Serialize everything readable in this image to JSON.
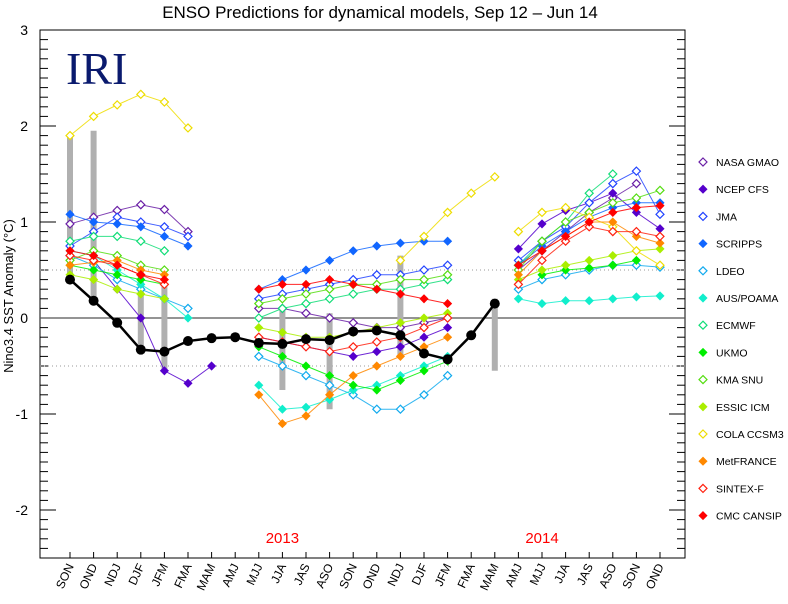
{
  "chart_data": {
    "type": "line",
    "title": "ENSO Predictions for dynamical models, Sep 12 – Jun 14",
    "ylabel": "Nino3.4 SST Anomaly (°C)",
    "xlabel": "",
    "ylim": [
      -2.5,
      3
    ],
    "yticks": [
      "3",
      "2",
      "1",
      "0",
      "-1",
      "-2"
    ],
    "ytick_values": [
      3,
      2,
      1,
      0,
      -1,
      -2
    ],
    "reference_lines": [
      0.5,
      -0.5
    ],
    "categories": [
      "SON",
      "OND",
      "NDJ",
      "DJF",
      "JFM",
      "FMA",
      "MAM",
      "AMJ",
      "MJJ",
      "JJA",
      "JAS",
      "ASO",
      "SON",
      "OND",
      "NDJ",
      "DJF",
      "JFM",
      "FMA",
      "MAM",
      "AMJ",
      "MJJ",
      "JJA",
      "JAS",
      "ASO",
      "SON",
      "OND"
    ],
    "year_labels": [
      {
        "text": "2013",
        "category_index": 9
      },
      {
        "text": "2014",
        "category_index": 20
      }
    ],
    "year_label_color": "#ff0000",
    "logo": "IRI",
    "logo_color": "#0a1a6e",
    "observed": {
      "color": "#000000",
      "values": [
        0.4,
        0.18,
        -0.05,
        -0.33,
        -0.35,
        -0.24,
        -0.21,
        -0.2,
        -0.26,
        -0.27,
        -0.22,
        -0.23,
        -0.14,
        -0.13,
        -0.18,
        -0.37,
        -0.43,
        -0.18,
        0.15
      ]
    },
    "range_bars": [
      {
        "i": 0,
        "lo": 0.4,
        "hi": 1.9
      },
      {
        "i": 1,
        "lo": 0.18,
        "hi": 1.95
      },
      {
        "i": 3,
        "lo": -0.33,
        "hi": 0.55
      },
      {
        "i": 4,
        "lo": -0.55,
        "hi": 0.35
      },
      {
        "i": 9,
        "lo": -0.75,
        "hi": 0.1
      },
      {
        "i": 11,
        "lo": -0.95,
        "hi": 0.05
      },
      {
        "i": 14,
        "lo": -0.4,
        "hi": 0.65
      },
      {
        "i": 18,
        "lo": -0.55,
        "hi": 0.2
      }
    ],
    "legend_position": "right",
    "series": [
      {
        "name": "NASA GMAO",
        "color": "#6a1fa6",
        "marker": "open",
        "forecasts": [
          {
            "start": 0,
            "values": [
              0.98,
              1.05,
              1.12,
              1.18,
              1.13,
              0.9
            ]
          },
          {
            "start": 8,
            "values": [
              0.1,
              0.1,
              0.05,
              0.0,
              -0.05,
              -0.1,
              -0.1,
              -0.05,
              0.0
            ]
          },
          {
            "start": 19,
            "values": [
              0.5,
              0.7,
              0.9,
              1.1,
              1.25,
              1.4
            ]
          }
        ]
      },
      {
        "name": "NCEP CFS",
        "color": "#5500cc",
        "marker": "filled",
        "forecasts": [
          {
            "start": 1,
            "values": [
              0.6,
              0.3,
              0.0,
              -0.55,
              -0.68,
              -0.5
            ]
          },
          {
            "start": 8,
            "values": [
              -0.2,
              -0.25,
              -0.3,
              -0.35,
              -0.4,
              -0.35,
              -0.3,
              -0.2,
              -0.1
            ]
          },
          {
            "start": 19,
            "values": [
              0.72,
              0.98,
              1.12,
              1.2,
              1.3,
              1.1,
              0.93
            ]
          }
        ]
      },
      {
        "name": "JMA",
        "color": "#2244ff",
        "marker": "open",
        "forecasts": [
          {
            "start": 0,
            "values": [
              0.75,
              0.9,
              1.05,
              1.0,
              0.95,
              0.85
            ]
          },
          {
            "start": 8,
            "values": [
              0.2,
              0.25,
              0.3,
              0.35,
              0.4,
              0.45,
              0.45,
              0.5,
              0.55
            ]
          },
          {
            "start": 19,
            "values": [
              0.6,
              0.8,
              0.95,
              1.2,
              1.4,
              1.53,
              1.08
            ]
          }
        ]
      },
      {
        "name": "SCRIPPS",
        "color": "#1166ff",
        "marker": "filled",
        "forecasts": [
          {
            "start": 0,
            "values": [
              1.08,
              1.0,
              0.98,
              0.95,
              0.85,
              0.75
            ]
          },
          {
            "start": 8,
            "values": [
              0.3,
              0.4,
              0.5,
              0.6,
              0.7,
              0.75,
              0.78,
              0.8,
              0.8
            ]
          },
          {
            "start": 19,
            "values": [
              0.55,
              0.75,
              0.9,
              1.05,
              1.15,
              1.2,
              1.2
            ]
          }
        ]
      },
      {
        "name": "LDEO",
        "color": "#11aaee",
        "marker": "open",
        "forecasts": [
          {
            "start": 0,
            "values": [
              0.65,
              0.55,
              0.4,
              0.3,
              0.2,
              0.1
            ]
          },
          {
            "start": 8,
            "values": [
              -0.4,
              -0.5,
              -0.6,
              -0.7,
              -0.8,
              -0.95,
              -0.95,
              -0.8,
              -0.6
            ]
          },
          {
            "start": 19,
            "values": [
              0.3,
              0.4,
              0.45,
              0.5,
              0.55,
              0.55,
              0.53
            ]
          }
        ]
      },
      {
        "name": "AUS/POAMA",
        "color": "#11eecc",
        "marker": "filled",
        "forecasts": [
          {
            "start": 0,
            "values": [
              0.7,
              0.65,
              0.5,
              0.35,
              0.2,
              0.0
            ]
          },
          {
            "start": 8,
            "values": [
              -0.7,
              -0.95,
              -0.93,
              -0.85,
              -0.75,
              -0.7,
              -0.6,
              -0.5,
              -0.4
            ]
          },
          {
            "start": 19,
            "values": [
              0.2,
              0.15,
              0.18,
              0.18,
              0.2,
              0.22,
              0.23
            ]
          }
        ]
      },
      {
        "name": "ECMWF",
        "color": "#11dd77",
        "marker": "open",
        "forecasts": [
          {
            "start": 0,
            "values": [
              0.8,
              0.85,
              0.85,
              0.8,
              0.7
            ]
          },
          {
            "start": 8,
            "values": [
              0.0,
              0.1,
              0.15,
              0.2,
              0.25,
              0.3,
              0.3,
              0.35,
              0.4
            ]
          },
          {
            "start": 19,
            "values": [
              0.55,
              0.8,
              1.0,
              1.3,
              1.5
            ]
          }
        ]
      },
      {
        "name": "UKMO",
        "color": "#00ee00",
        "marker": "filled",
        "forecasts": [
          {
            "start": 0,
            "values": [
              0.55,
              0.5,
              0.45,
              0.4,
              0.35
            ]
          },
          {
            "start": 8,
            "values": [
              -0.3,
              -0.4,
              -0.5,
              -0.6,
              -0.7,
              -0.75,
              -0.65,
              -0.55,
              -0.45
            ]
          },
          {
            "start": 20,
            "values": [
              0.45,
              0.5,
              0.52,
              0.55,
              0.6
            ]
          }
        ]
      },
      {
        "name": "KMA SNU",
        "color": "#55dd11",
        "marker": "open",
        "forecasts": [
          {
            "start": 0,
            "values": [
              0.6,
              0.7,
              0.65,
              0.55,
              0.5
            ]
          },
          {
            "start": 8,
            "values": [
              0.15,
              0.2,
              0.25,
              0.3,
              0.35,
              0.35,
              0.4,
              0.4,
              0.45
            ]
          },
          {
            "start": 19,
            "values": [
              0.5,
              0.8,
              1.0,
              1.1,
              1.2,
              1.25,
              1.33
            ]
          }
        ]
      },
      {
        "name": "ESSIC ICM",
        "color": "#aaee00",
        "marker": "filled",
        "forecasts": [
          {
            "start": 0,
            "values": [
              0.45,
              0.4,
              0.3,
              0.25,
              0.2
            ]
          },
          {
            "start": 8,
            "values": [
              -0.1,
              -0.15,
              -0.2,
              -0.2,
              -0.15,
              -0.1,
              -0.05,
              0.0,
              0.05
            ]
          },
          {
            "start": 19,
            "values": [
              0.4,
              0.5,
              0.55,
              0.6,
              0.65,
              0.7,
              0.72
            ]
          }
        ]
      },
      {
        "name": "COLA CCSM3",
        "color": "#eedd00",
        "marker": "open",
        "forecasts": [
          {
            "start": 0,
            "values": [
              1.9,
              2.1,
              2.22,
              2.33,
              2.25,
              1.98
            ]
          },
          {
            "start": 14,
            "values": [
              0.6,
              0.85,
              1.1,
              1.3,
              1.47
            ]
          },
          {
            "start": 19,
            "values": [
              0.9,
              1.1,
              1.15,
              1.05,
              0.95,
              0.7,
              0.55
            ]
          }
        ]
      },
      {
        "name": "MetFRANCE",
        "color": "#ff8800",
        "marker": "filled",
        "forecasts": [
          {
            "start": 0,
            "values": [
              0.55,
              0.58,
              0.6,
              0.5,
              0.45
            ]
          },
          {
            "start": 8,
            "values": [
              -0.8,
              -1.1,
              -1.02,
              -0.8,
              -0.6,
              -0.5,
              -0.4,
              -0.3,
              -0.2
            ]
          },
          {
            "start": 19,
            "values": [
              0.45,
              0.7,
              0.85,
              1.0,
              1.0,
              0.85,
              0.78
            ]
          }
        ]
      },
      {
        "name": "SINTEX-F",
        "color": "#ff2211",
        "marker": "open",
        "forecasts": [
          {
            "start": 0,
            "values": [
              0.65,
              0.6,
              0.55,
              0.45,
              0.35
            ]
          },
          {
            "start": 8,
            "values": [
              -0.2,
              -0.25,
              -0.3,
              -0.35,
              -0.3,
              -0.25,
              -0.2,
              -0.1,
              0.0
            ]
          },
          {
            "start": 19,
            "values": [
              0.35,
              0.6,
              0.8,
              0.95,
              0.9,
              0.9,
              0.85
            ]
          }
        ]
      },
      {
        "name": "CMC CANSIP",
        "color": "#ff0000",
        "marker": "filled",
        "forecasts": [
          {
            "start": 0,
            "values": [
              0.7,
              0.65,
              0.55,
              0.45,
              0.4
            ]
          },
          {
            "start": 8,
            "values": [
              0.3,
              0.35,
              0.35,
              0.4,
              0.35,
              0.3,
              0.25,
              0.2,
              0.15
            ]
          },
          {
            "start": 19,
            "values": [
              0.55,
              0.7,
              0.85,
              1.0,
              1.1,
              1.15,
              1.17
            ]
          }
        ]
      }
    ]
  }
}
